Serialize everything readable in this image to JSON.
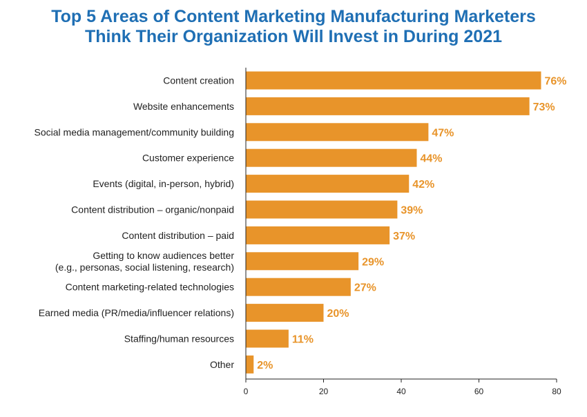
{
  "title_line1": "Top 5 Areas of Content Marketing Manufacturing Marketers",
  "title_line2": "Think Their Organization Will Invest in During 2021",
  "colors": {
    "title": "#1f6fb4",
    "bar": "#e8942a",
    "value_label": "#e8942a",
    "axis": "#222222"
  },
  "chart_data": {
    "type": "bar",
    "orientation": "horizontal",
    "title": "Top 5 Areas of Content Marketing Manufacturing Marketers Think Their Organization Will Invest in During 2021",
    "categories": [
      [
        "Content creation"
      ],
      [
        "Website enhancements"
      ],
      [
        "Social media management/community building"
      ],
      [
        "Customer experience"
      ],
      [
        "Events (digital, in-person, hybrid)"
      ],
      [
        "Content distribution – organic/nonpaid"
      ],
      [
        "Content distribution – paid"
      ],
      [
        "Getting to know audiences better",
        "(e.g., personas, social listening, research)"
      ],
      [
        "Content marketing-related technologies"
      ],
      [
        "Earned media (PR/media/influencer relations)"
      ],
      [
        "Staffing/human resources"
      ],
      [
        "Other"
      ]
    ],
    "values": [
      76,
      73,
      47,
      44,
      42,
      39,
      37,
      29,
      27,
      20,
      11,
      2
    ],
    "value_labels": [
      "76%",
      "73%",
      "47%",
      "44%",
      "42%",
      "39%",
      "37%",
      "29%",
      "27%",
      "20%",
      "11%",
      "2%"
    ],
    "xlim": [
      0,
      80
    ],
    "xticks": [
      "0",
      "20",
      "40",
      "60",
      "80"
    ],
    "grid": false
  }
}
